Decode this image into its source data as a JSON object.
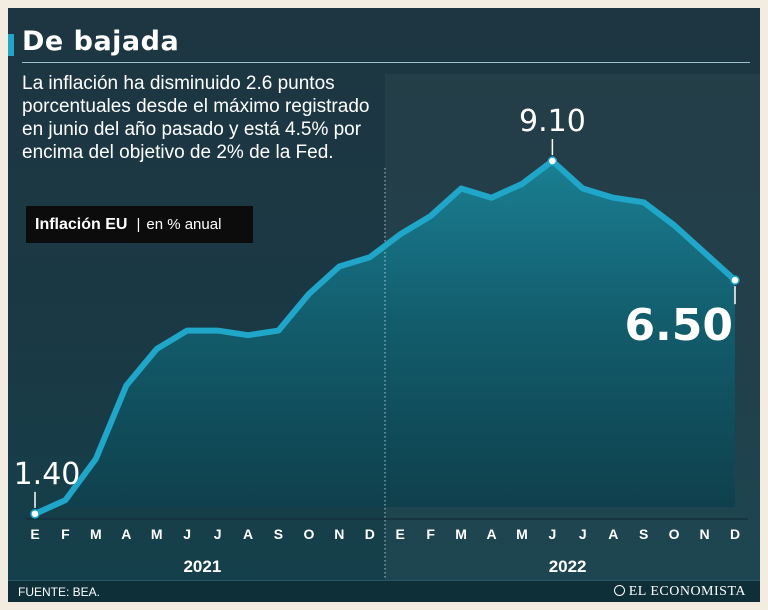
{
  "title": "De bajada",
  "subtitle": "La inflación ha disminuido 2.6 puntos porcentuales desde el máximo registrado en junio del año pasado y está 4.5% por encima del objetivo de 2% de la Fed.",
  "legend": {
    "name": "Inflación EU",
    "separator": "|",
    "unit": "en % anual"
  },
  "source": "FUENTE: BEA.",
  "brand": "EL ECONOMISTA",
  "colors": {
    "line": "#1fa6c8",
    "accent": "#21a6c8",
    "text": "#ffffff"
  },
  "chart_data": {
    "type": "area",
    "x": [
      "E",
      "F",
      "M",
      "A",
      "M",
      "J",
      "J",
      "A",
      "S",
      "O",
      "N",
      "D",
      "E",
      "F",
      "M",
      "A",
      "M",
      "J",
      "J",
      "A",
      "S",
      "O",
      "N",
      "D"
    ],
    "years": [
      {
        "label": "2021",
        "start": 0,
        "end": 11
      },
      {
        "label": "2022",
        "start": 12,
        "end": 23
      }
    ],
    "series": [
      {
        "values": [
          1.4,
          1.7,
          2.6,
          4.2,
          5.0,
          5.4,
          5.4,
          5.3,
          5.4,
          6.2,
          6.8,
          7.0,
          7.5,
          7.9,
          8.5,
          8.3,
          8.6,
          9.1,
          8.5,
          8.3,
          8.2,
          7.7,
          7.1,
          6.5
        ]
      }
    ],
    "annotations": [
      {
        "index": 0,
        "label": "1.40"
      },
      {
        "index": 17,
        "label": "9.10"
      },
      {
        "index": 23,
        "label": "6.50"
      }
    ],
    "ylim": [
      0,
      11
    ],
    "grid": false
  }
}
